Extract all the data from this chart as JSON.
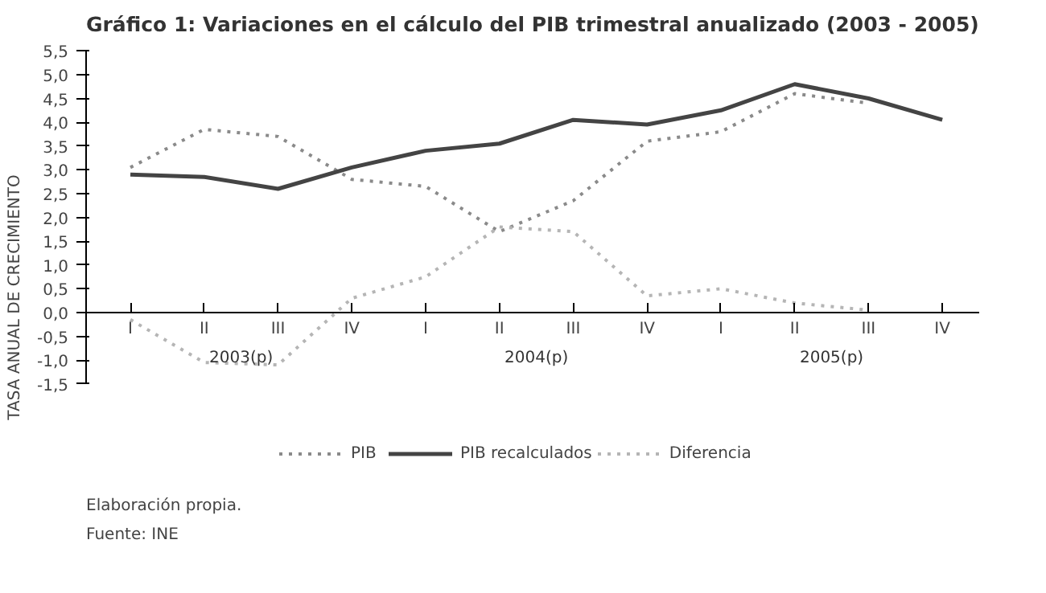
{
  "chart_data": {
    "type": "line",
    "title": "Gráfico 1: Variaciones en el cálculo del PIB trimestral anualizado (2003 - 2005)",
    "ylabel": "TASA ANUAL DE CRECIMIENTO",
    "categories": [
      "I",
      "II",
      "III",
      "IV",
      "I",
      "II",
      "III",
      "IV",
      "I",
      "II",
      "III",
      "IV"
    ],
    "series": [
      {
        "name": "PIB",
        "color": "#8a8a8a",
        "line_style": "dotted",
        "values": [
          3.05,
          3.85,
          3.7,
          2.8,
          2.65,
          1.7,
          2.35,
          3.6,
          3.8,
          4.6,
          4.4,
          null
        ]
      },
      {
        "name": "PIB recalculados",
        "color": "#444444",
        "line_style": "solid",
        "values": [
          2.9,
          2.85,
          2.6,
          3.05,
          3.4,
          3.55,
          4.05,
          3.95,
          4.25,
          4.8,
          4.5,
          4.05
        ]
      },
      {
        "name": "Diferencia",
        "color": "#b5b5b5",
        "line_style": "dotted",
        "values": [
          -0.15,
          -1.05,
          -1.1,
          0.3,
          0.75,
          1.8,
          1.7,
          0.35,
          0.5,
          0.2,
          0.05,
          null
        ]
      }
    ],
    "ylim": [
      -1.5,
      5.5
    ],
    "yticks": [
      {
        "value": -1.5,
        "label": "-1,5"
      },
      {
        "value": -1.0,
        "label": "-1,0"
      },
      {
        "value": -0.5,
        "label": "-0,5"
      },
      {
        "value": 0.0,
        "label": "0,0"
      },
      {
        "value": 0.5,
        "label": "0,5"
      },
      {
        "value": 1.0,
        "label": "1,0"
      },
      {
        "value": 1.5,
        "label": "1,5"
      },
      {
        "value": 2.0,
        "label": "2,0"
      },
      {
        "value": 2.5,
        "label": "2,5"
      },
      {
        "value": 3.0,
        "label": "3,0"
      },
      {
        "value": 3.5,
        "label": "3,5"
      },
      {
        "value": 4.0,
        "label": "4,0"
      },
      {
        "value": 4.5,
        "label": "4,5"
      },
      {
        "value": 5.0,
        "label": "5,0"
      },
      {
        "value": 5.5,
        "label": "5,5"
      }
    ],
    "annotations": [
      "2003(p)",
      "2004(p)",
      "2005(p)",
      "Elaboración propia.",
      "Fuente: INE"
    ],
    "grid": false,
    "legend": "bottom",
    "marker": "none"
  }
}
